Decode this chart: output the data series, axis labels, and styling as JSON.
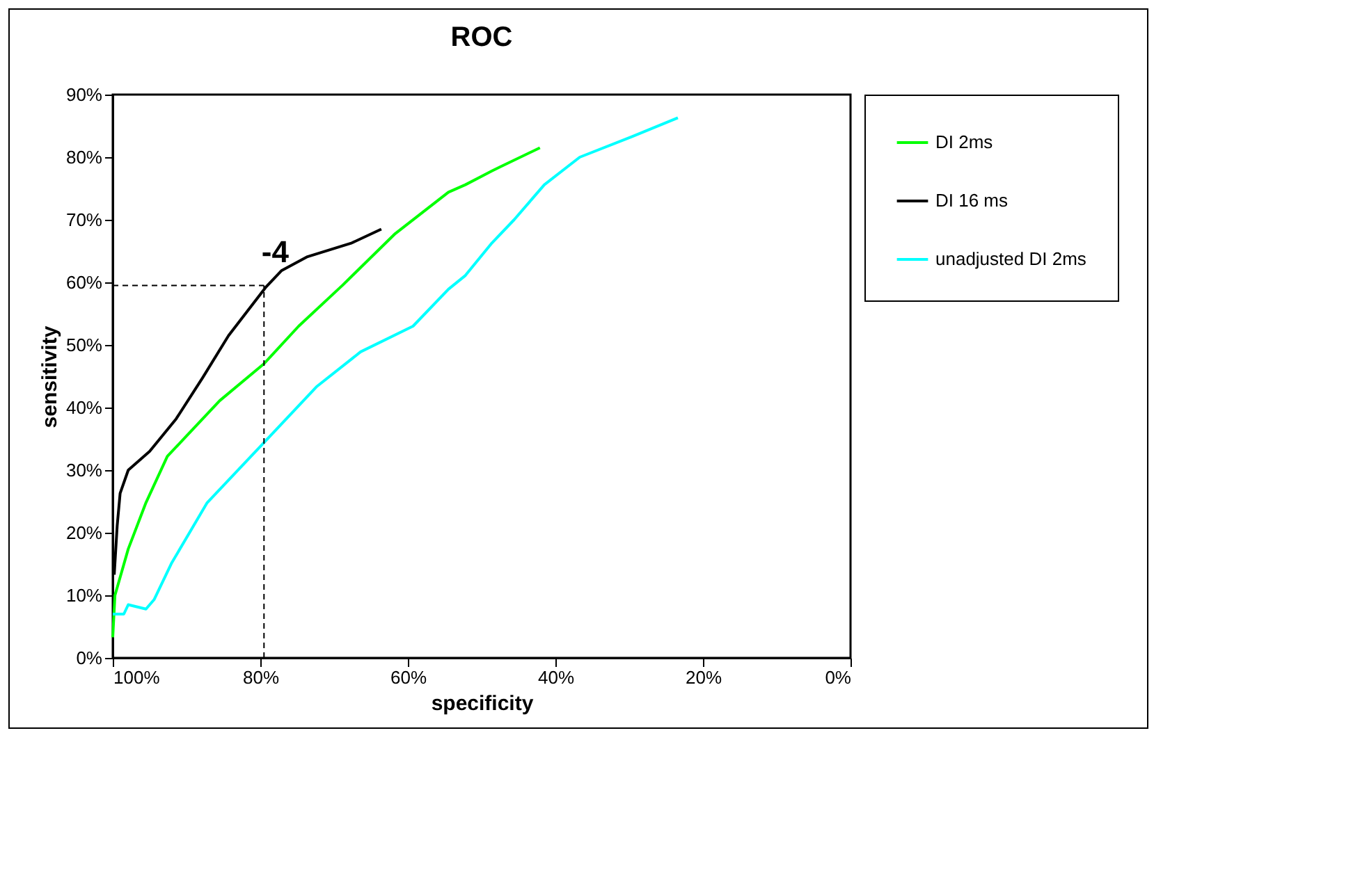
{
  "chart_data": {
    "type": "line",
    "title": "ROC",
    "xlabel": "specificity",
    "ylabel": "sensitivity",
    "xlim": [
      100,
      0
    ],
    "ylim": [
      0,
      90
    ],
    "xticks": [
      {
        "value": 100,
        "label": "100%"
      },
      {
        "value": 80,
        "label": "80%"
      },
      {
        "value": 60,
        "label": "60%"
      },
      {
        "value": 40,
        "label": "40%"
      },
      {
        "value": 20,
        "label": "20%"
      },
      {
        "value": 0,
        "label": "0%"
      }
    ],
    "yticks": [
      {
        "value": 0,
        "label": "0%"
      },
      {
        "value": 10,
        "label": "10%"
      },
      {
        "value": 20,
        "label": "20%"
      },
      {
        "value": 30,
        "label": "30%"
      },
      {
        "value": 40,
        "label": "40%"
      },
      {
        "value": 50,
        "label": "50%"
      },
      {
        "value": 60,
        "label": "60%"
      },
      {
        "value": 70,
        "label": "70%"
      },
      {
        "value": 80,
        "label": "80%"
      },
      {
        "value": 90,
        "label": "90%"
      }
    ],
    "grid": false,
    "legend": "right",
    "series": [
      {
        "name": "DI 2ms",
        "color": "#00ff00",
        "x": [
          100,
          99.7,
          97.9,
          95.5,
          92.6,
          90.2,
          85.5,
          79.5,
          74.8,
          68.8,
          61.7,
          54.5,
          52.2,
          48.6,
          47.4,
          42.1
        ],
        "values": [
          3.3,
          10,
          17.4,
          24.8,
          32.2,
          35.2,
          41.1,
          47,
          53,
          59.6,
          67.8,
          74.4,
          75.6,
          77.8,
          78.5,
          81.5
        ]
      },
      {
        "name": "DI 16 ms",
        "color": "#000000",
        "x": [
          99.8,
          99.4,
          99,
          97.9,
          95,
          91.4,
          87.8,
          84.3,
          79.2,
          77.1,
          73.6,
          67.6,
          63.6
        ],
        "values": [
          13.3,
          21.1,
          26.3,
          30,
          33,
          38.2,
          44.8,
          51.5,
          59.3,
          61.9,
          64.1,
          66.3,
          68.5
        ]
      },
      {
        "name": "unadjusted DI 2ms",
        "color": "#00ffff",
        "x": [
          100,
          98.5,
          97.9,
          95.5,
          94.4,
          92,
          87.2,
          79.5,
          72.4,
          66.4,
          59.3,
          54.5,
          52.2,
          48.6,
          45.6,
          41.5,
          36.7,
          29.6,
          23.4
        ],
        "values": [
          7,
          7,
          8.5,
          7.8,
          9.3,
          15.2,
          24.8,
          34.4,
          43.3,
          48.9,
          53,
          58.9,
          61.1,
          66.3,
          70,
          75.6,
          80,
          83.3,
          86.3
        ]
      }
    ],
    "ref_lines": [
      {
        "axis": "y",
        "value": 59.5,
        "color": "#000000",
        "line_style": "dashed"
      },
      {
        "axis": "x",
        "value": 79.5,
        "color": "#000000",
        "line_style": "dashed"
      }
    ],
    "annotations": [
      {
        "text": "-4",
        "x": 79.5,
        "y": 59.5
      }
    ]
  }
}
